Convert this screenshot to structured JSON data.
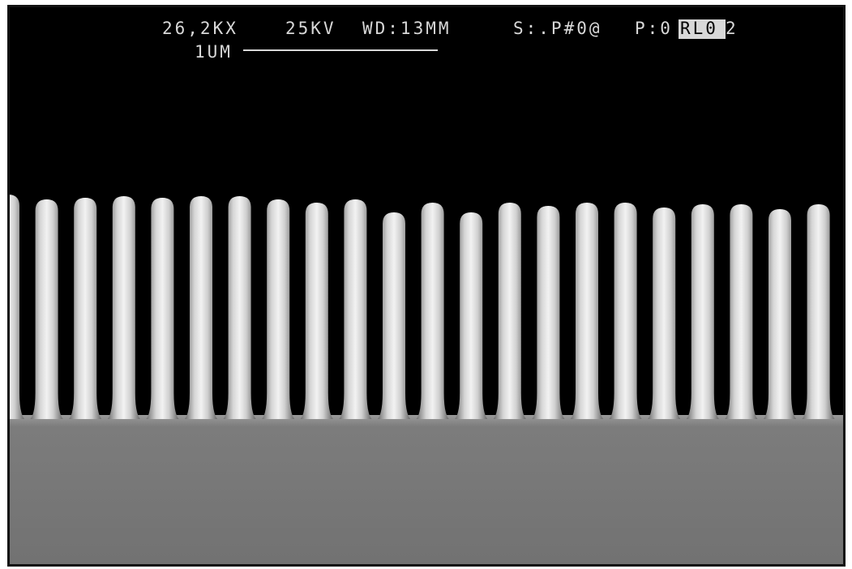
{
  "header": {
    "magnification": "26,2KX",
    "voltage": "25KV",
    "working_distance": "WD:13MM",
    "sample": "S:.P#0@",
    "photo": "P:0",
    "highlight": "RL0",
    "suffix": "2"
  },
  "scale_bar": {
    "label": "1UM"
  }
}
